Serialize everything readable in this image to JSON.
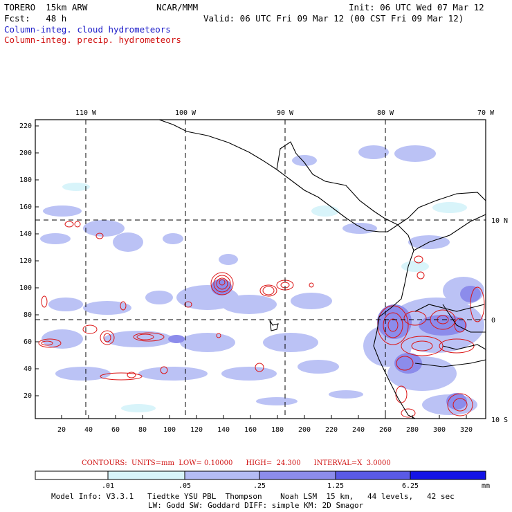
{
  "header": {
    "model": "TORERO  15km ARW",
    "org": "NCAR/MMM",
    "init": "Init: 06 UTC Wed 07 Mar 12",
    "fcst": "Fcst:   48 h",
    "valid": "Valid: 06 UTC Fri 09 Mar 12 (00 CST Fri 09 Mar 12)",
    "field_cloud": "Column-integ. cloud hydrometeors",
    "field_precip": "Column-integ. precip. hydrometeors"
  },
  "map": {
    "lon_labels": [
      "110 W",
      "100 W",
      "90 W",
      "80 W",
      "70 W"
    ],
    "lat_labels": [
      "10 N",
      "0",
      "10 S"
    ],
    "grid_y_labels": [
      "220",
      "200",
      "180",
      "160",
      "140",
      "120",
      "100",
      "80",
      "60",
      "40",
      "20"
    ],
    "grid_x_labels": [
      "20",
      "40",
      "60",
      "80",
      "100",
      "120",
      "140",
      "160",
      "180",
      "200",
      "220",
      "240",
      "260",
      "280",
      "300",
      "320"
    ]
  },
  "contours_info": {
    "text": "CONTOURS:  UNITS=mm  LOW= 0.10000      HIGH=  24.300      INTERVAL=X  3.0000"
  },
  "colorbar": {
    "ticks": [
      ".01",
      ".05",
      ".25",
      "1.25",
      "6.25"
    ],
    "unit": "mm",
    "colors": [
      "#ffffff",
      "#d8f4fa",
      "#b4bcf4",
      "#8c8ceb",
      "#5a5ae6",
      "#2f2fe6",
      "#1414e6"
    ]
  },
  "footer": {
    "line1": "Model Info: V3.3.1   Tiedtke YSU PBL  Thompson    Noah LSM  15 km,   44 levels,   42 sec",
    "line2": "LW: Godd SW: Goddard DIFF: simple KM: 2D Smagor"
  }
}
